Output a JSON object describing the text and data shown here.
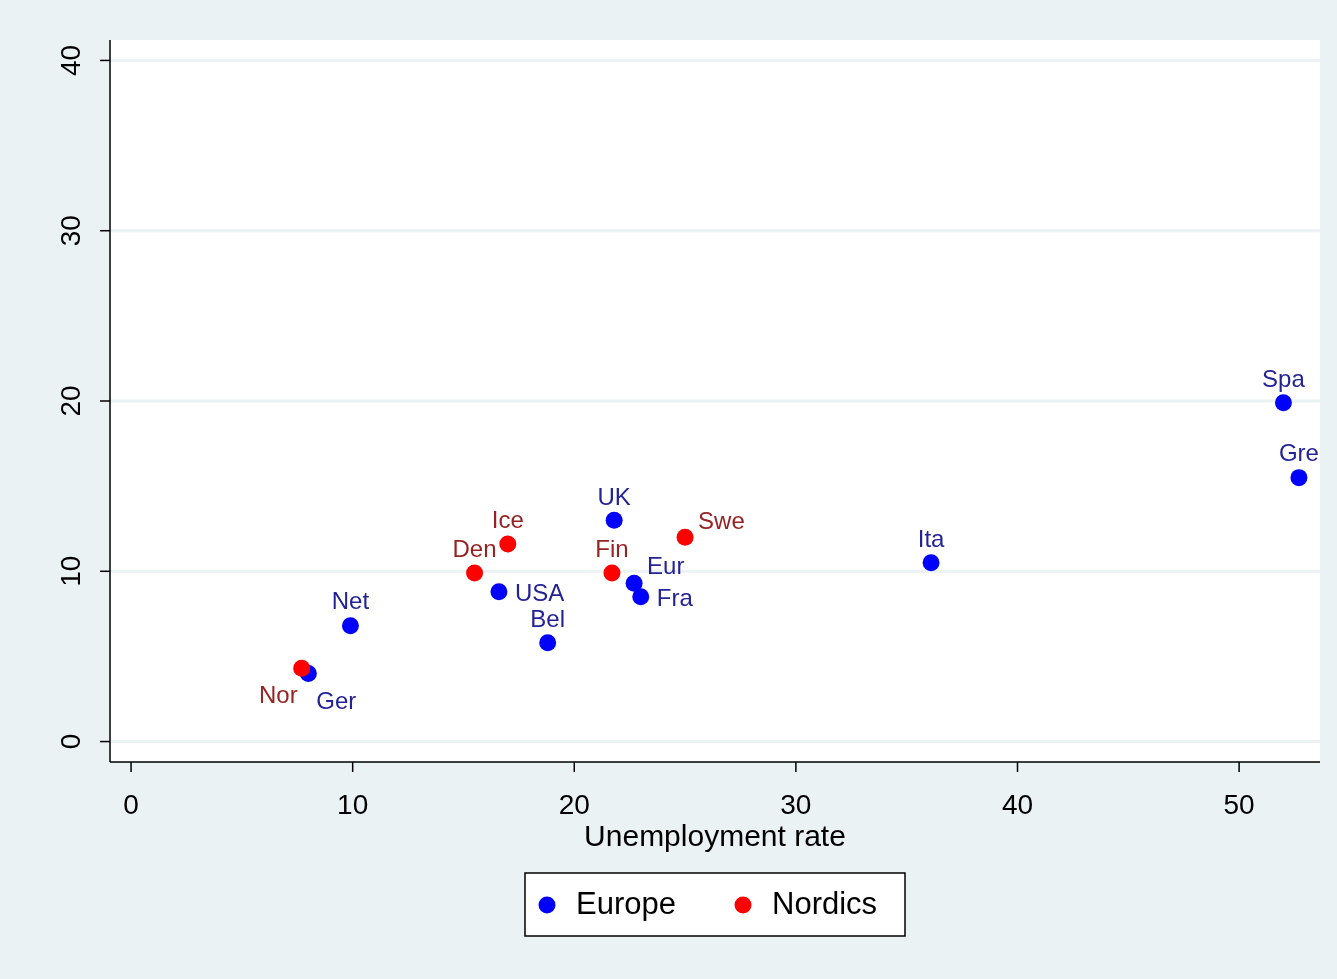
{
  "chart_data": {
    "type": "scatter",
    "xlabel": "Unemployment rate",
    "xlim": [
      -0.95,
      53.65
    ],
    "ylim": [
      -1.2,
      41.2
    ],
    "xticks": [
      0,
      10,
      20,
      30,
      40,
      50
    ],
    "yticks": [
      0,
      10,
      20,
      30,
      40
    ],
    "grid": "y",
    "legend": "bottom",
    "marker": "circle",
    "series": [
      {
        "name": "Europe",
        "color": "#0000ff",
        "x": [
          8.0,
          9.9,
          16.6,
          18.8,
          21.8,
          22.7,
          23.0,
          36.1,
          52.0,
          52.7
        ],
        "values": [
          4.0,
          6.8,
          8.8,
          5.8,
          13.0,
          9.3,
          8.5,
          10.5,
          19.9,
          15.5
        ]
      },
      {
        "name": "Nordics",
        "color": "#ff0000",
        "x": [
          7.7,
          15.5,
          17.0,
          21.7,
          25.0
        ],
        "values": [
          4.3,
          9.9,
          11.6,
          9.9,
          12.0
        ]
      }
    ],
    "annotations": [
      {
        "text": "Nor",
        "x": 7.7,
        "y": 4.3
      },
      {
        "text": "Ger",
        "x": 8.0,
        "y": 4.0
      },
      {
        "text": "Net",
        "x": 9.9,
        "y": 6.8
      },
      {
        "text": "Den",
        "x": 15.5,
        "y": 9.9
      },
      {
        "text": "Ice",
        "x": 17.0,
        "y": 11.6
      },
      {
        "text": "USA",
        "x": 16.6,
        "y": 8.8
      },
      {
        "text": "Bel",
        "x": 18.8,
        "y": 5.8
      },
      {
        "text": "UK",
        "x": 21.8,
        "y": 13.0
      },
      {
        "text": "Fin",
        "x": 21.7,
        "y": 9.9
      },
      {
        "text": "Eur",
        "x": 22.7,
        "y": 9.3
      },
      {
        "text": "Fra",
        "x": 23.0,
        "y": 8.5
      },
      {
        "text": "Swe",
        "x": 25.0,
        "y": 12.0
      },
      {
        "text": "Ita",
        "x": 36.1,
        "y": 10.5
      },
      {
        "text": "Spa",
        "x": 52.0,
        "y": 19.9
      },
      {
        "text": "Gre",
        "x": 52.7,
        "y": 15.5
      }
    ]
  }
}
